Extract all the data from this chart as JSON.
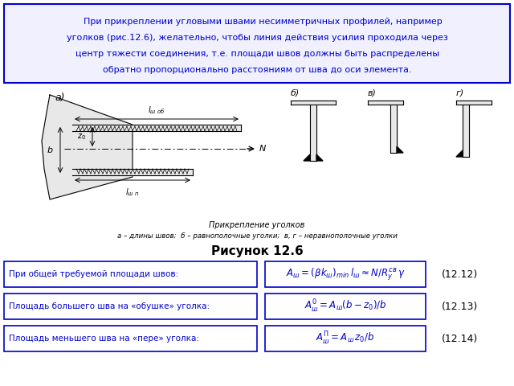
{
  "bg_color": "#ffffff",
  "title_box_color": "#0000cd",
  "title_box_fill": "#f0f0ff",
  "title_text_color": "#0000cd",
  "title_line1": "    При прикреплении угловыми швами несимметричных профилей, например",
  "title_line2": "уголков (рис.12.6), желательно, чтобы линия действия усилия проходила через",
  "title_line3": "центр тяжести соединения, т.е. площади швов должны быть распределены",
  "title_line4": "обратно пропорционально расстояниям от шва до оси элемента.",
  "figure_caption": "Рисунок 12.6",
  "figure_caption_color": "#000000",
  "row1_label": "При общей требуемой площади швов:",
  "row1_formula": "$A_{\\mathit{ш}} = (\\beta k_{\\mathit{ш}})_{min}\\, l_{\\mathit{ш}} \\approx N/R_y^{св}\\, \\gamma$",
  "row1_num": "(12.12)",
  "row2_label": "Площадь большего шва на «обушке» уголка:",
  "row2_formula": "$A_{\\mathit{ш}}^{0} = A_{\\mathit{ш}}(b - z_0)/b$",
  "row2_num": "(12.13)",
  "row3_label": "Площадь меньшего шва на «пере» уголка:",
  "row3_formula": "$A_{\\mathit{ш}}^{\\Pi} = A_{\\mathit{ш}}\\, z_0/b$",
  "row3_num": "(12.14)",
  "label_box_color": "#0000cd",
  "label_text_color": "#0000cd",
  "formula_box_color": "#0000cd",
  "formula_text_color": "#0000cd",
  "num_text_color": "#000000",
  "drawing_color": "#000000",
  "drawing_light": "#e8e8e8"
}
